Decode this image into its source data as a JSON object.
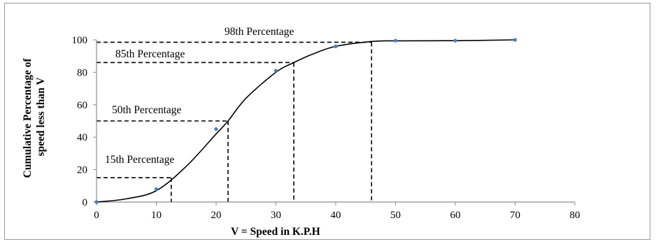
{
  "chart_data": {
    "type": "line",
    "title": "",
    "xlabel": "V = Speed in K.P.H",
    "ylabel_lines": [
      "Cumulative Percentage of",
      "speed less than V"
    ],
    "xlim": [
      0,
      80
    ],
    "ylim": [
      0,
      100
    ],
    "xticks": [
      0,
      10,
      20,
      30,
      40,
      50,
      60,
      70,
      80
    ],
    "yticks": [
      0,
      20,
      40,
      60,
      80,
      100
    ],
    "grid": false,
    "legend": "none",
    "series": [
      {
        "points": [
          [
            0,
            0
          ],
          [
            10,
            8
          ],
          [
            20,
            45
          ],
          [
            30,
            81
          ],
          [
            40,
            96
          ],
          [
            50,
            99.5
          ],
          [
            60,
            99.5
          ],
          [
            70,
            100
          ]
        ]
      }
    ],
    "curve": [
      [
        0,
        0
      ],
      [
        5,
        2
      ],
      [
        10,
        7
      ],
      [
        15,
        22
      ],
      [
        20,
        42
      ],
      [
        22,
        50
      ],
      [
        25,
        64
      ],
      [
        30,
        80
      ],
      [
        33,
        86
      ],
      [
        36,
        91
      ],
      [
        40,
        96
      ],
      [
        46,
        99
      ],
      [
        50,
        99.4
      ],
      [
        60,
        99.5
      ],
      [
        70,
        100
      ]
    ],
    "percentiles": [
      {
        "label": "15th Percentage",
        "x": 12.5,
        "y": 15
      },
      {
        "label": "50th Percentage",
        "x": 22,
        "y": 50
      },
      {
        "label": "85th Percentage",
        "x": 33,
        "y": 86
      },
      {
        "label": "98th Percentage",
        "x": 46,
        "y": 98.5
      }
    ],
    "colors": {
      "curve": "#000000",
      "marker": "#4a7ebb",
      "axis": "#8c8c8c"
    }
  }
}
